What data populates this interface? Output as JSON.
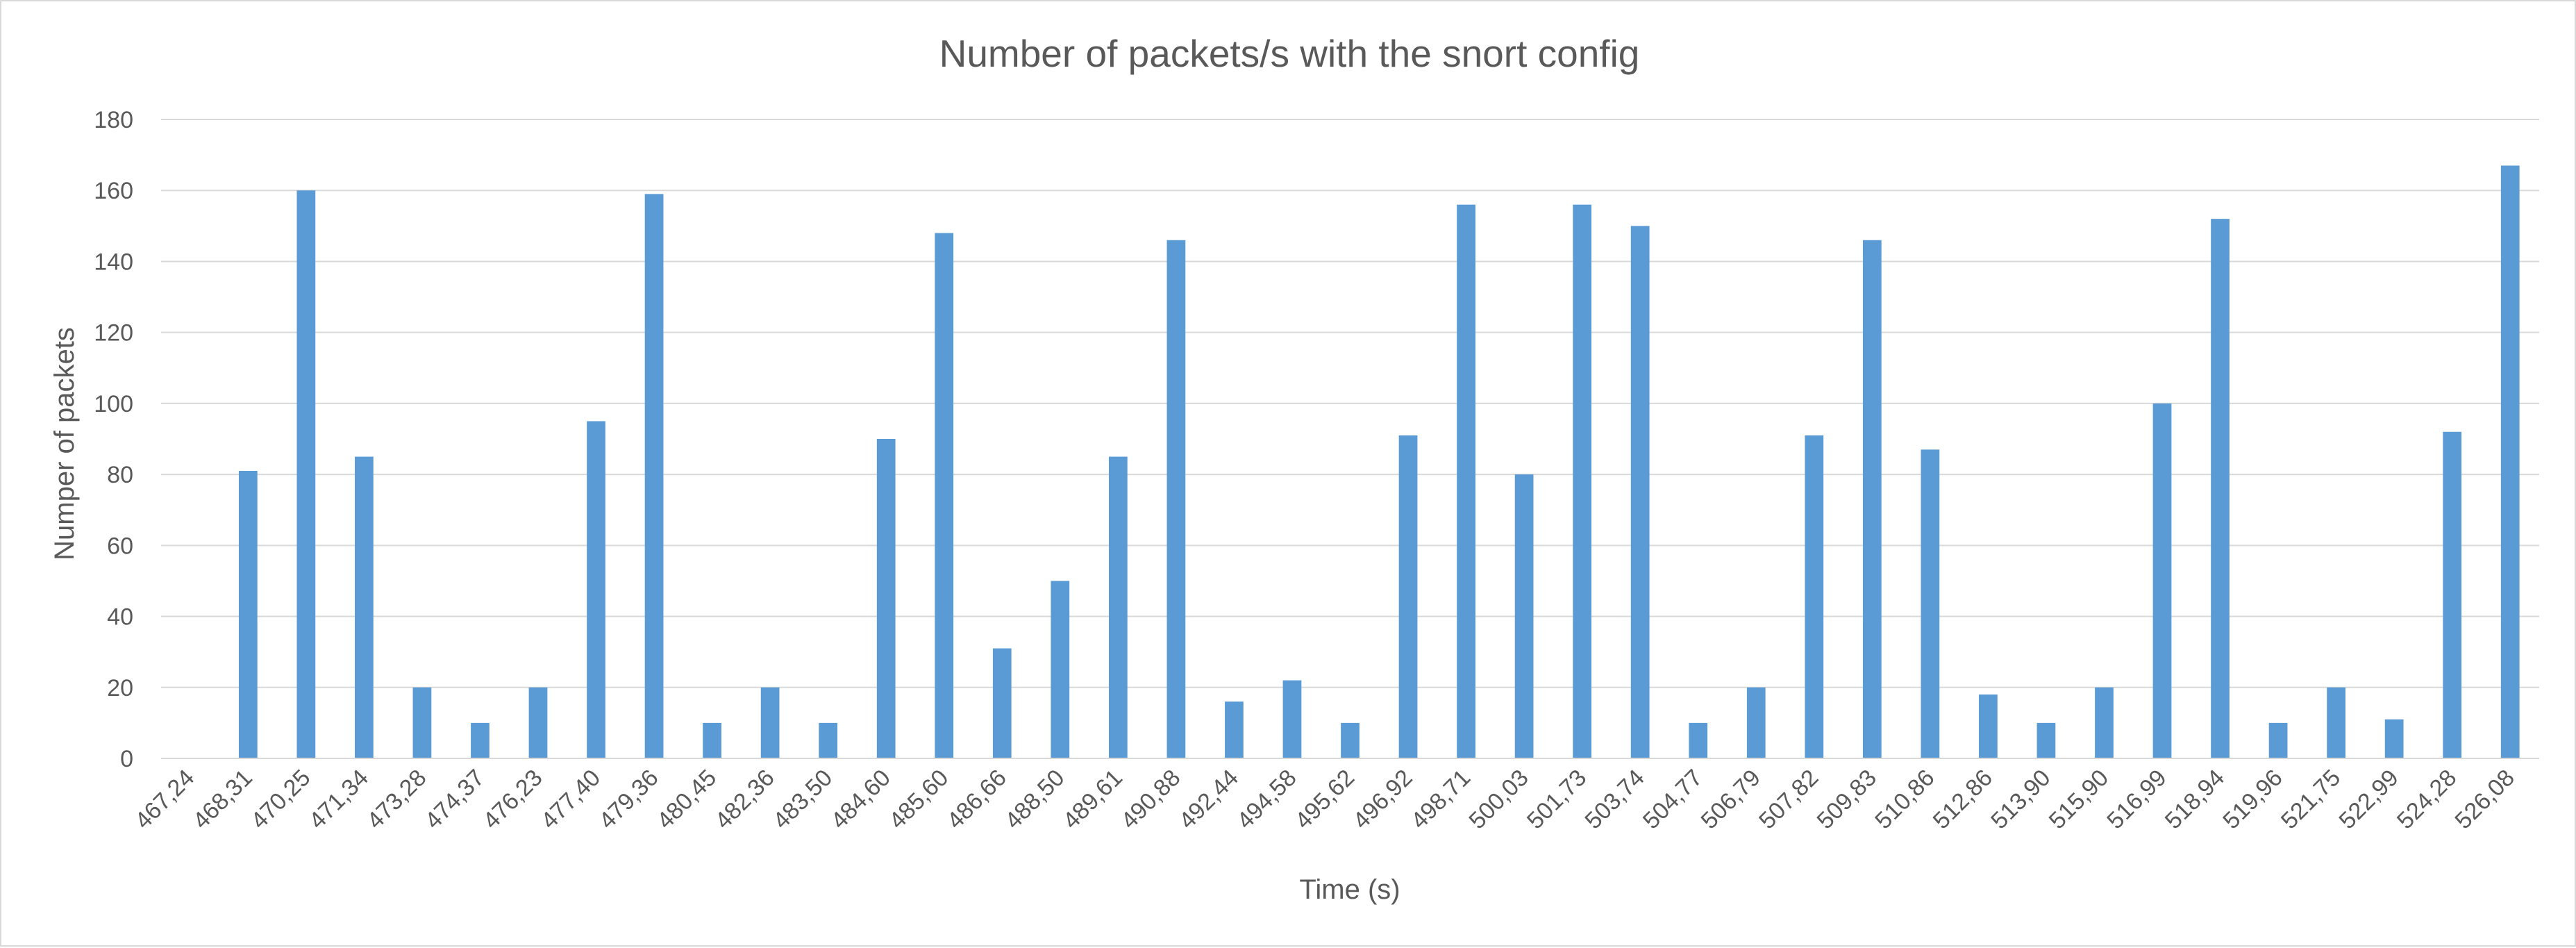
{
  "chart_data": {
    "type": "bar",
    "title": "Number of packets/s with the snort config",
    "xlabel": "Time (s)",
    "ylabel": "Numper of packets",
    "ylim": [
      0,
      180
    ],
    "yticks": [
      0,
      20,
      40,
      60,
      80,
      100,
      120,
      140,
      160,
      180
    ],
    "grid": true,
    "legend": "none",
    "bar_color": "#5b9bd5",
    "categories": [
      "467,24",
      "468,31",
      "470,25",
      "471,34",
      "473,28",
      "474,37",
      "476,23",
      "477,40",
      "479,36",
      "480,45",
      "482,36",
      "483,50",
      "484,60",
      "485,60",
      "486,66",
      "488,50",
      "489,61",
      "490,88",
      "492,44",
      "494,58",
      "495,62",
      "496,92",
      "498,71",
      "500,03",
      "501,73",
      "503,74",
      "504,77",
      "506,79",
      "507,82",
      "509,83",
      "510,86",
      "512,86",
      "513,90",
      "515,90",
      "516,99",
      "518,94",
      "519,96",
      "521,75",
      "522,99",
      "524,28",
      "526,08"
    ],
    "values": [
      0,
      81,
      160,
      85,
      20,
      10,
      20,
      95,
      159,
      10,
      20,
      10,
      90,
      148,
      31,
      50,
      85,
      146,
      16,
      22,
      10,
      91,
      156,
      80,
      156,
      150,
      10,
      20,
      91,
      146,
      87,
      18,
      10,
      20,
      100,
      152,
      10,
      20,
      11,
      92,
      167
    ]
  }
}
